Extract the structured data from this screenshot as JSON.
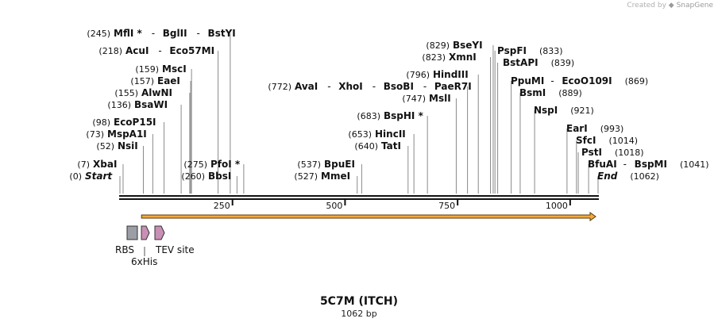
{
  "credit": {
    "prefix": "Created by",
    "brand": "SnapGene"
  },
  "map": {
    "title": "5C7M (ITCH)",
    "length_label": "1062 bp",
    "length": 1062,
    "ticks": [
      250,
      500,
      750,
      1000
    ]
  },
  "enzymes": [
    {
      "pos": 245,
      "pos_label": "(245)",
      "names": [
        "MflI *",
        "BglII",
        "BstYI"
      ]
    },
    {
      "pos": 218,
      "pos_label": "(218)",
      "names": [
        "AcuI",
        "Eco57MI"
      ]
    },
    {
      "pos": 159,
      "pos_label": "(159)",
      "names": [
        "MscI"
      ]
    },
    {
      "pos": 157,
      "pos_label": "(157)",
      "names": [
        "EaeI"
      ]
    },
    {
      "pos": 155,
      "pos_label": "(155)",
      "names": [
        "AlwNI"
      ]
    },
    {
      "pos": 136,
      "pos_label": "(136)",
      "names": [
        "BsaWI"
      ]
    },
    {
      "pos": 98,
      "pos_label": "(98)",
      "names": [
        "EcoP15I"
      ]
    },
    {
      "pos": 73,
      "pos_label": "(73)",
      "names": [
        "MspA1I"
      ]
    },
    {
      "pos": 52,
      "pos_label": "(52)",
      "names": [
        "NsiI"
      ]
    },
    {
      "pos": 7,
      "pos_label": "(7)",
      "names": [
        "XbaI"
      ]
    },
    {
      "pos": 0,
      "pos_label": "(0)",
      "names": [
        "Start"
      ],
      "terminal": true
    },
    {
      "pos": 275,
      "pos_label": "(275)",
      "names": [
        "PfoI *"
      ]
    },
    {
      "pos": 260,
      "pos_label": "(260)",
      "names": [
        "BbsI"
      ]
    },
    {
      "pos": 537,
      "pos_label": "(537)",
      "names": [
        "BpuEI"
      ]
    },
    {
      "pos": 527,
      "pos_label": "(527)",
      "names": [
        "MmeI"
      ]
    },
    {
      "pos": 772,
      "pos_label": "(772)",
      "names": [
        "AvaI",
        "XhoI",
        "BsoBI",
        "PaeR7I"
      ]
    },
    {
      "pos": 747,
      "pos_label": "(747)",
      "names": [
        "MslI"
      ]
    },
    {
      "pos": 683,
      "pos_label": "(683)",
      "names": [
        "BspHI *"
      ]
    },
    {
      "pos": 653,
      "pos_label": "(653)",
      "names": [
        "HincII"
      ]
    },
    {
      "pos": 640,
      "pos_label": "(640)",
      "names": [
        "TatI"
      ]
    },
    {
      "pos": 829,
      "pos_label": "(829)",
      "names": [
        "BseYI"
      ]
    },
    {
      "pos": 823,
      "pos_label": "(823)",
      "names": [
        "XmnI"
      ]
    },
    {
      "pos": 796,
      "pos_label": "(796)",
      "names": [
        "HindIII"
      ]
    },
    {
      "pos": 833,
      "pos_label": "(833)",
      "names": [
        "PspFI"
      ]
    },
    {
      "pos": 839,
      "pos_label": "(839)",
      "names": [
        "BstAPI"
      ]
    },
    {
      "pos": 869,
      "pos_label": "(869)",
      "names": [
        "PpuMI",
        "EcoO109I"
      ]
    },
    {
      "pos": 889,
      "pos_label": "(889)",
      "names": [
        "BsmI"
      ]
    },
    {
      "pos": 921,
      "pos_label": "(921)",
      "names": [
        "NspI"
      ]
    },
    {
      "pos": 993,
      "pos_label": "(993)",
      "names": [
        "EarI"
      ]
    },
    {
      "pos": 1014,
      "pos_label": "(1014)",
      "names": [
        "SfcI"
      ]
    },
    {
      "pos": 1018,
      "pos_label": "(1018)",
      "names": [
        "PstI"
      ]
    },
    {
      "pos": 1041,
      "pos_label": "(1041)",
      "names": [
        "BfuAI",
        "BspMI"
      ]
    },
    {
      "pos": 1062,
      "pos_label": "(1062)",
      "names": [
        "End"
      ],
      "terminal": true
    }
  ],
  "features": [
    {
      "label": "RBS",
      "type": "rbs",
      "start": 20,
      "end": 44,
      "color": "#9c9ea6"
    },
    {
      "label": "6xHis",
      "type": "tag",
      "start": 52,
      "end": 70,
      "color": "#c890b4"
    },
    {
      "label": "TEV site",
      "type": "site",
      "start": 84,
      "end": 105,
      "color": "#c890b4"
    }
  ],
  "orf": {
    "start": 48,
    "end": 1062,
    "color": "#f2a93b"
  }
}
